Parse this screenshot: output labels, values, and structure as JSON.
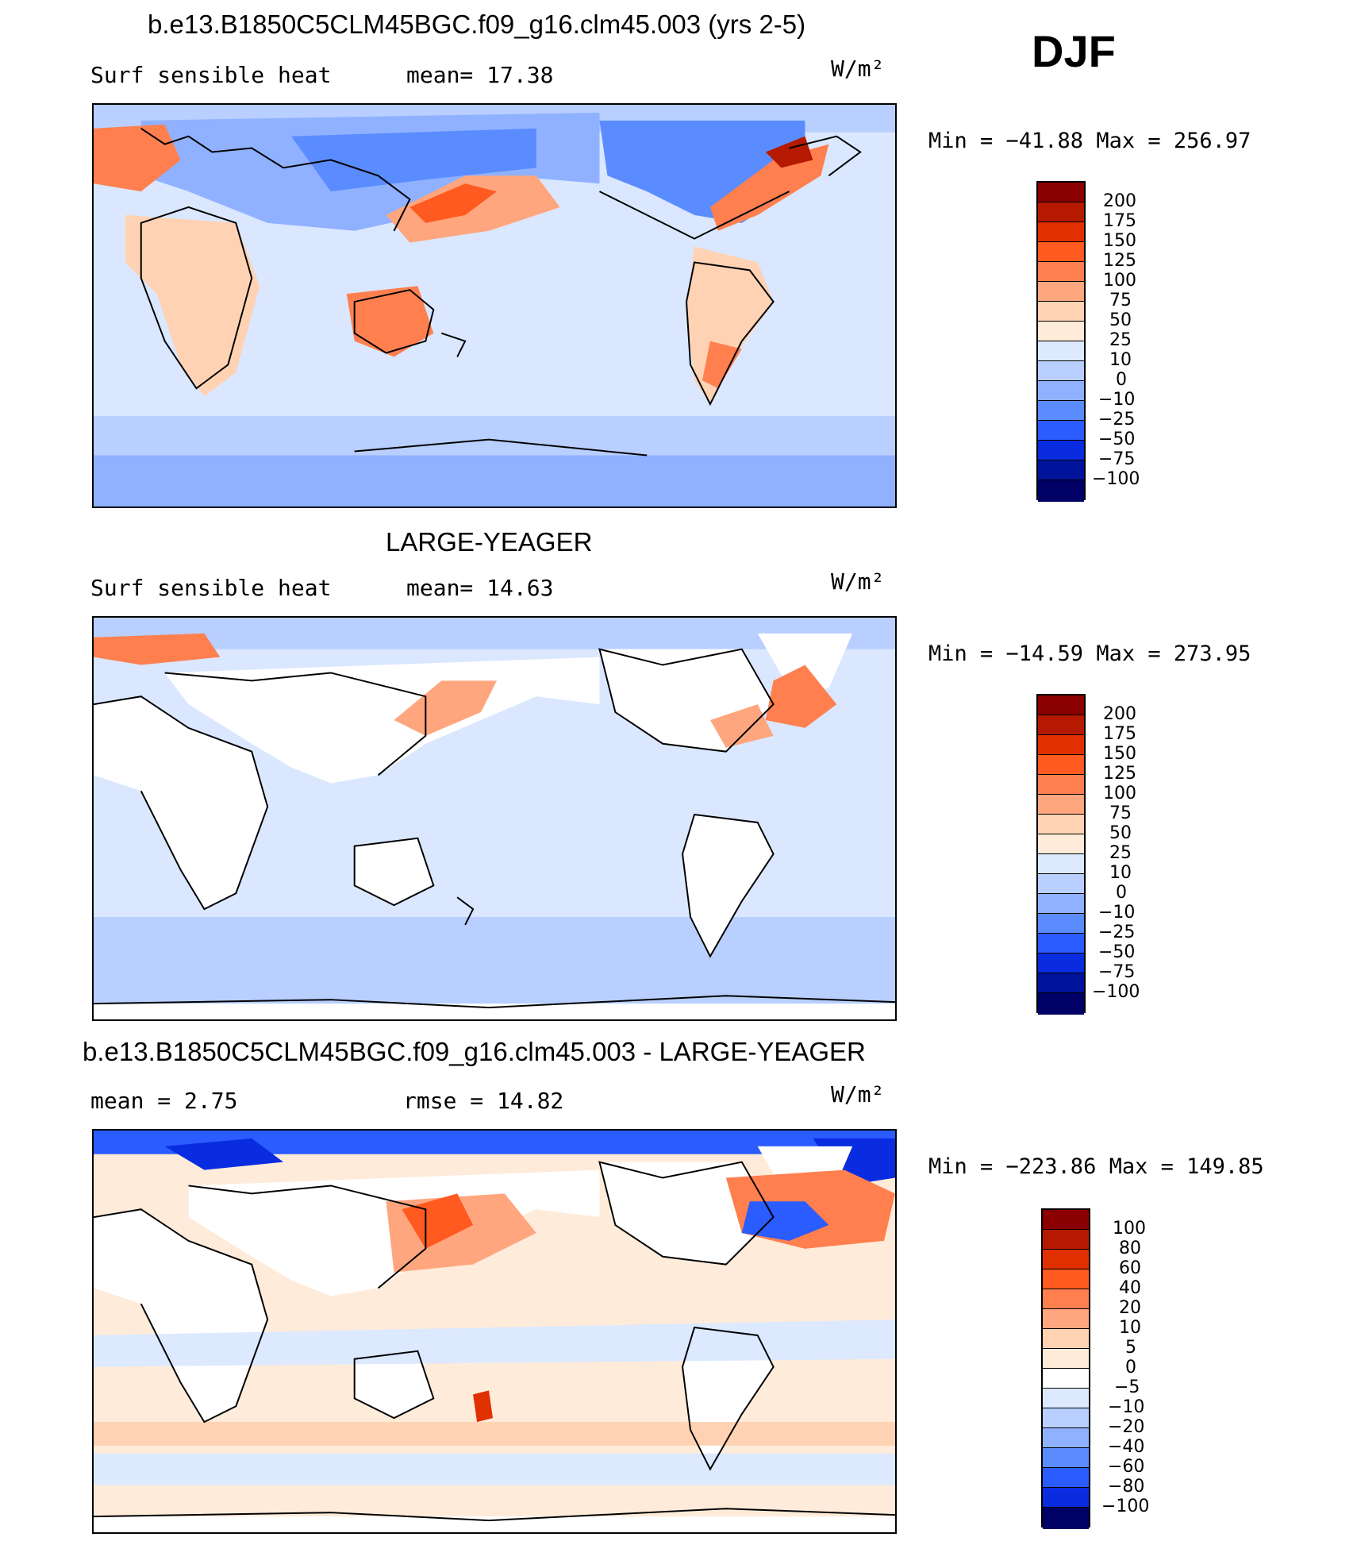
{
  "season": "DJF",
  "panels": [
    {
      "title": "b.e13.B1850C5CLM45BGC.f09_g16.clm45.003 (yrs 2-5)",
      "left_label": "Surf  sensible  heat",
      "mid_label": "mean=   17.38",
      "units": "W/m²",
      "minmax": "Min  =  −41.88  Max  =  256.97",
      "colorbar_labels": [
        "200",
        "175",
        "150",
        "125",
        "100",
        "75",
        "50",
        "25",
        "10",
        "0",
        "−10",
        "−25",
        "−50",
        "−75",
        "−100"
      ]
    },
    {
      "title": "LARGE-YEAGER",
      "left_label": "Surf  sensible  heat",
      "mid_label": "mean=   14.63",
      "units": "W/m²",
      "minmax": "Min  =  −14.59  Max  =  273.95",
      "colorbar_labels": [
        "200",
        "175",
        "150",
        "125",
        "100",
        "75",
        "50",
        "25",
        "10",
        "0",
        "−10",
        "−25",
        "−50",
        "−75",
        "−100"
      ]
    },
    {
      "title": "b.e13.B1850C5CLM45BGC.f09_g16.clm45.003 - LARGE-YEAGER",
      "left_label": "mean  =     2.75",
      "mid_label": "rmse  =     14.82",
      "units": "W/m²",
      "minmax": "Min  =  −223.86  Max  =  149.85",
      "colorbar_labels": [
        "100",
        "80",
        "60",
        "40",
        "20",
        "10",
        "5",
        "0",
        "−5",
        "−10",
        "−20",
        "−40",
        "−60",
        "−80",
        "−100"
      ]
    }
  ],
  "colors": {
    "scale": [
      "#8b0000",
      "#b51a00",
      "#e03000",
      "#ff5a1f",
      "#ff7f4f",
      "#ffa67f",
      "#ffd2b3",
      "#ffebd9",
      "#dce9ff",
      "#b8cfff",
      "#8fb1ff",
      "#5a8cff",
      "#2a5cff",
      "#0a2ce0",
      "#00149b",
      "#000066"
    ],
    "land": "#ffffff",
    "ocean_neutral": "#d7e5ff"
  }
}
